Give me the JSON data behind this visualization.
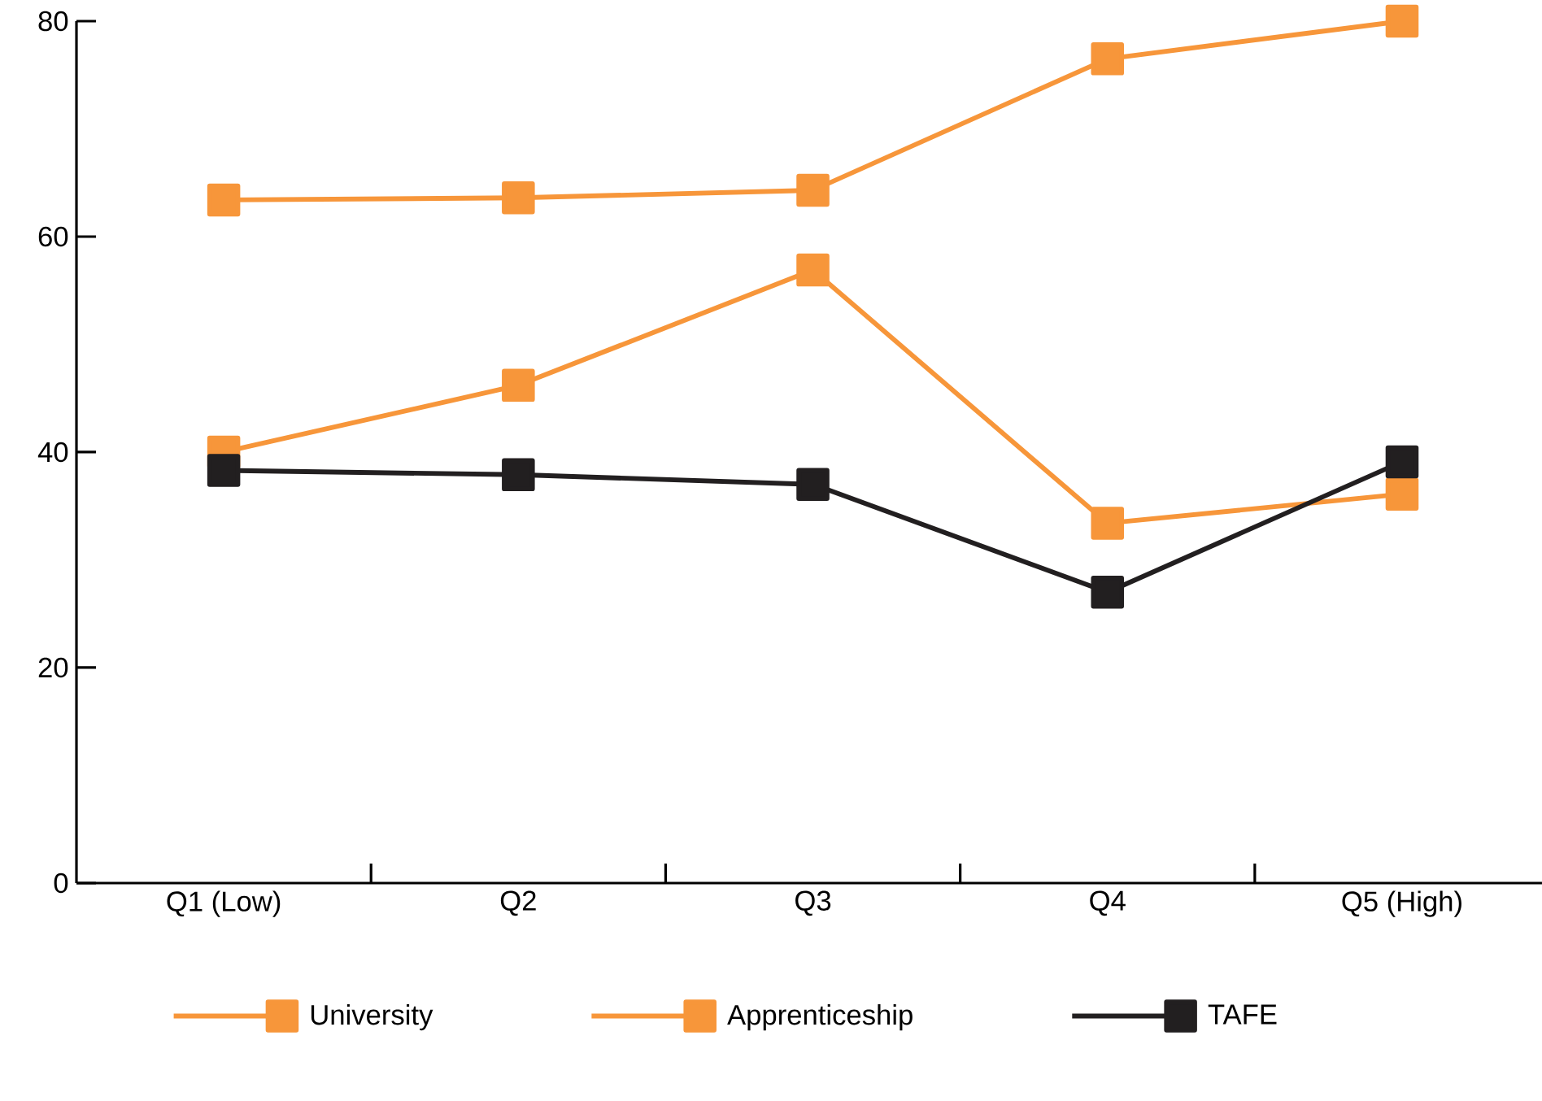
{
  "chart_data": {
    "type": "line",
    "categories": [
      "Q1 (Low)",
      "Q2",
      "Q3",
      "Q4",
      "Q5 (High)"
    ],
    "series": [
      {
        "name": "University",
        "color": "#f7963a",
        "values": [
          63.4,
          63.6,
          64.3,
          76.5,
          80.0
        ]
      },
      {
        "name": "Apprenticeship",
        "color": "#f7963a",
        "values": [
          40.0,
          46.2,
          56.9,
          33.4,
          36.1
        ]
      },
      {
        "name": "TAFE",
        "color": "#221f20",
        "values": [
          38.3,
          37.9,
          37.0,
          27.0,
          39.1
        ]
      }
    ],
    "ylim": [
      0,
      80
    ],
    "yticks": [
      0,
      20,
      40,
      60,
      80
    ],
    "marker": "square",
    "line_style": "solid",
    "legend": "bottom"
  }
}
